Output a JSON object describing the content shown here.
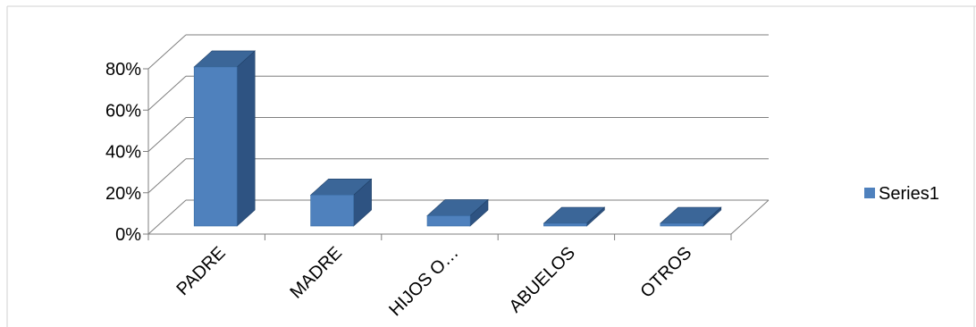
{
  "chart_data": {
    "type": "bar",
    "categories": [
      "PADRE",
      "MADRE",
      "HIJOS O…",
      "ABUELOS",
      "OTROS"
    ],
    "series": [
      {
        "name": "Series1",
        "values": [
          0.77,
          0.15,
          0.05,
          0.0,
          0.01
        ]
      }
    ],
    "ylim": [
      0,
      0.8
    ],
    "yticks": [
      "0%",
      "20%",
      "40%",
      "60%",
      "80%"
    ],
    "grid": true,
    "legend": "right",
    "three_d": true,
    "colors": {
      "bar_front": "#4F81BD",
      "bar_side": "#2E5382",
      "bar_top": "#3B6698",
      "grid": "#7F7F7F"
    }
  }
}
